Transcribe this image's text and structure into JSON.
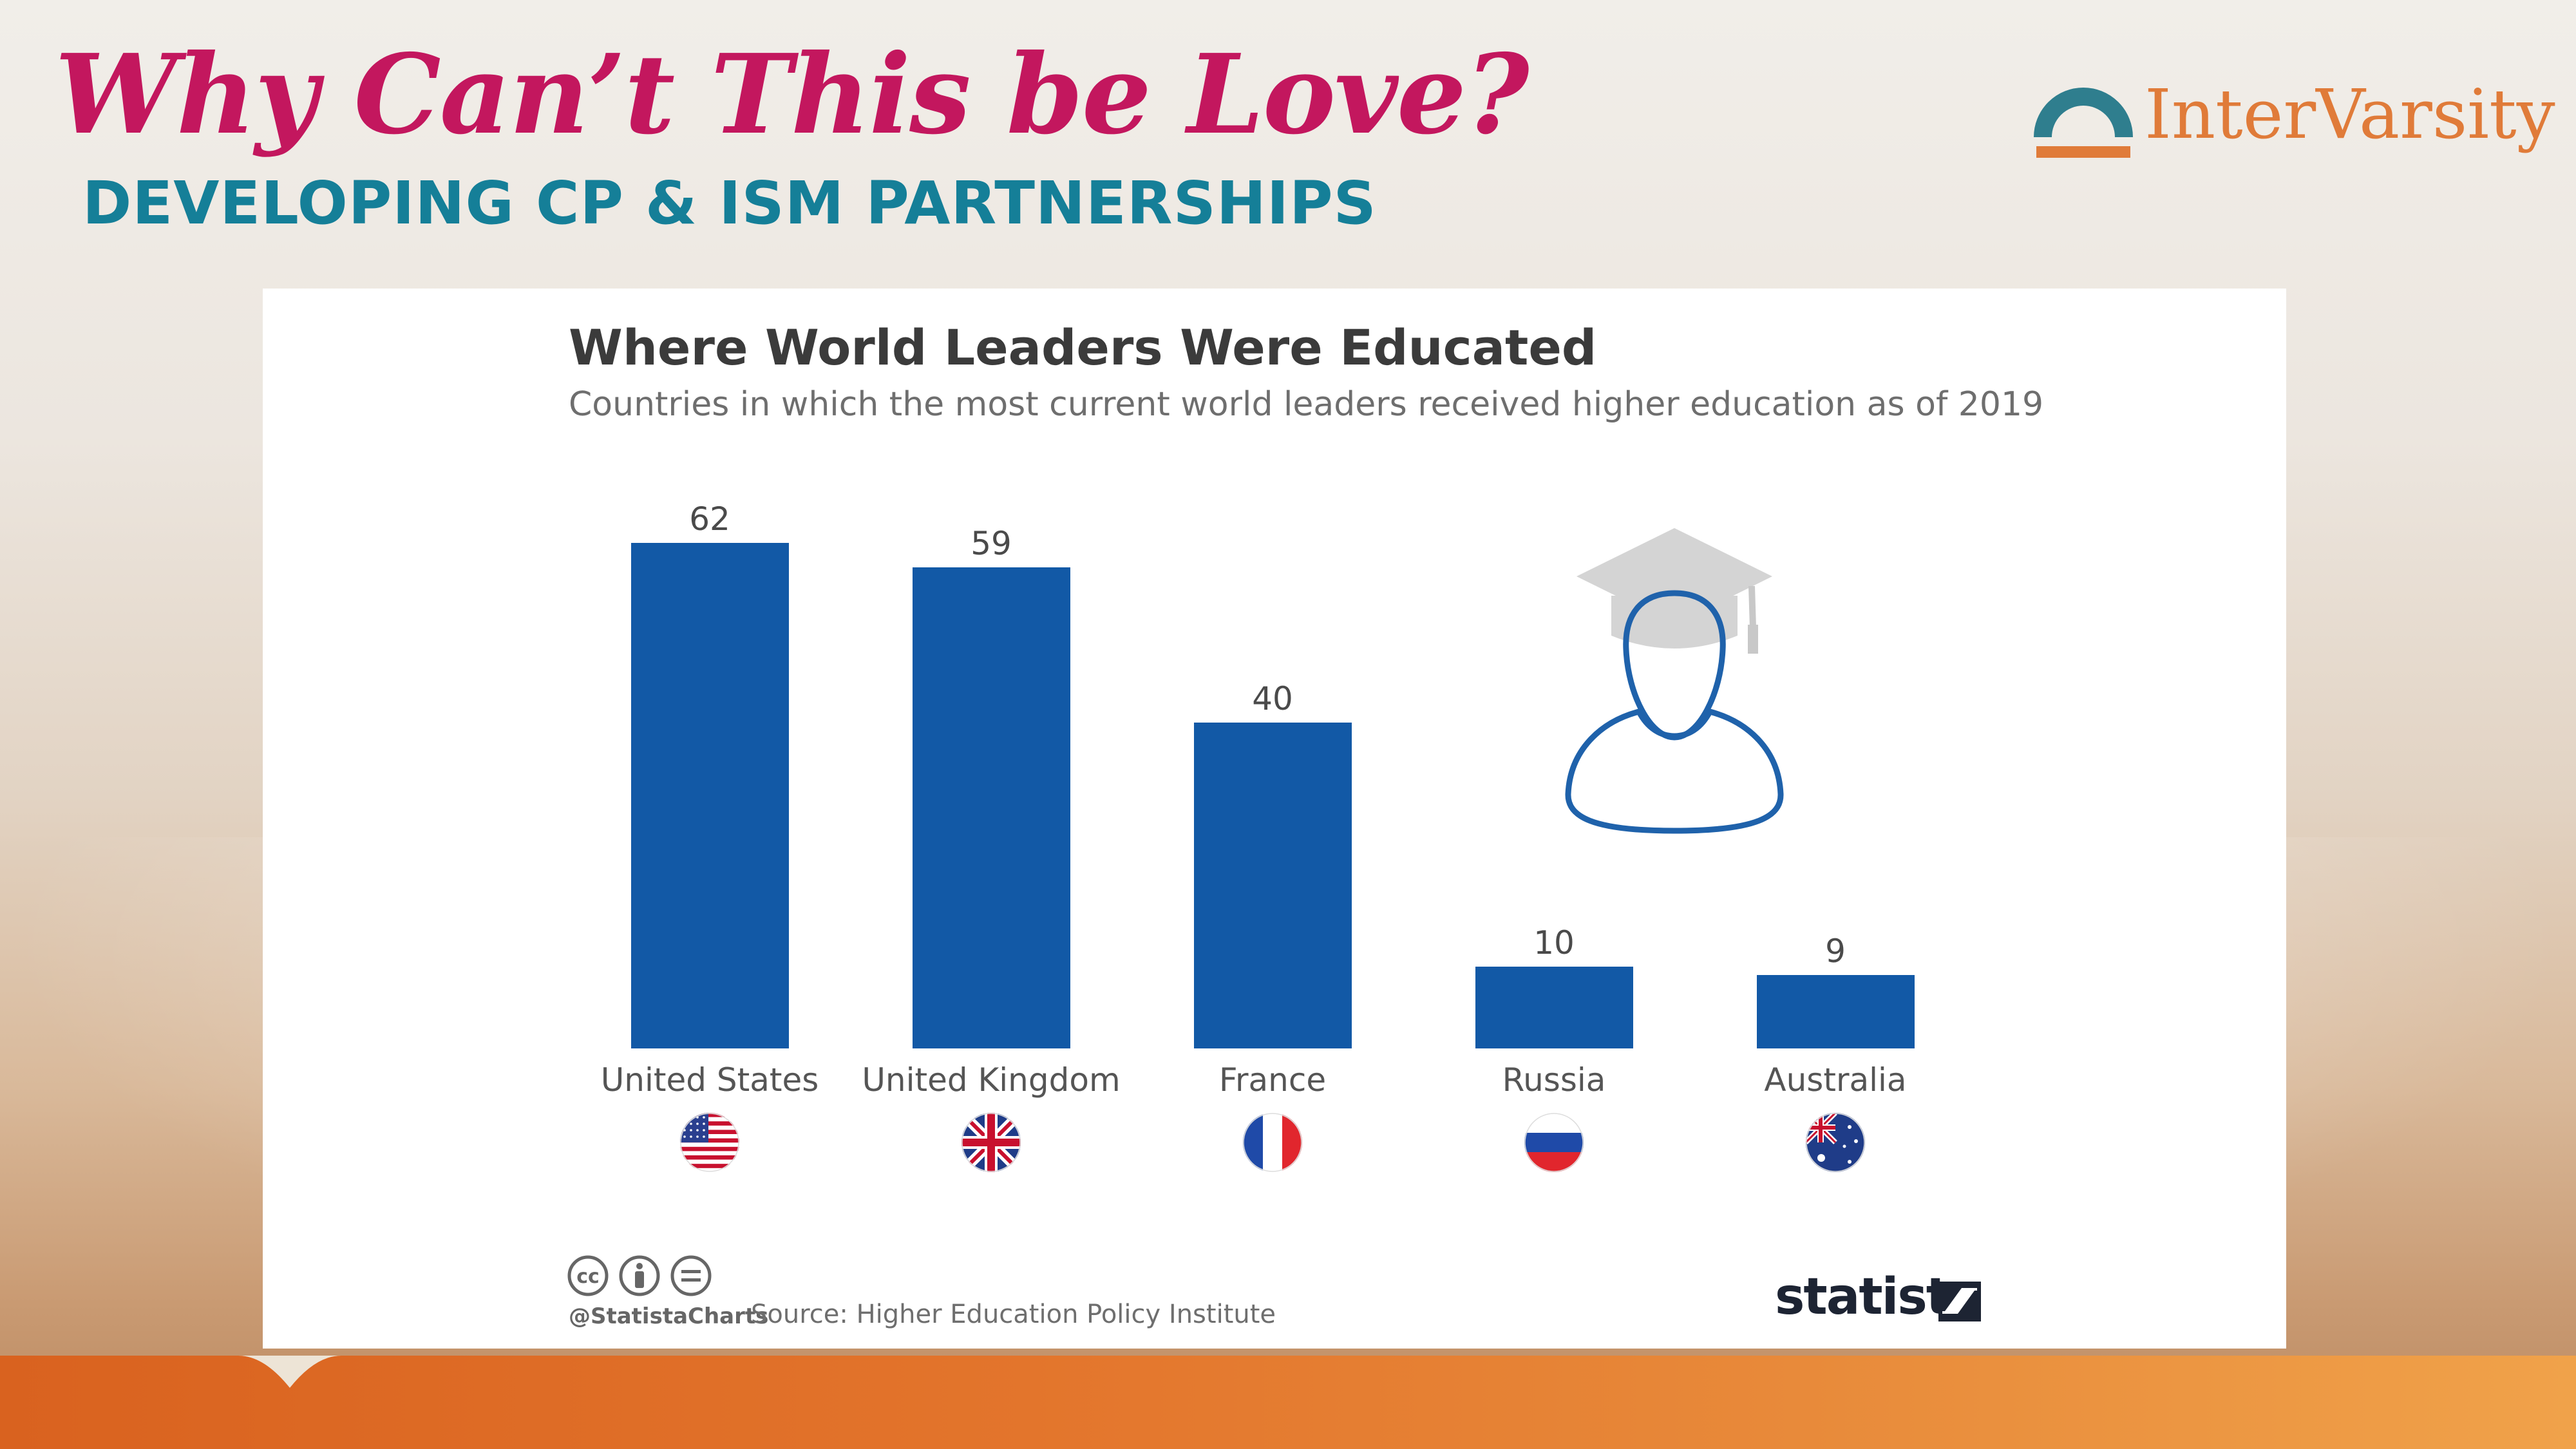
{
  "slide": {
    "title": "Why Can’t This be Love?",
    "subtitle": "DEVELOPING CP & ISM PARTNERSHIPS",
    "brand": "InterVarsity"
  },
  "chart_data": {
    "type": "bar",
    "title": "Where World Leaders Were Educated",
    "subtitle": "Countries in which the most current world leaders received higher education as of 2019",
    "categories": [
      "United States",
      "United Kingdom",
      "France",
      "Russia",
      "Australia"
    ],
    "values": [
      62,
      59,
      40,
      10,
      9
    ],
    "value_labels": [
      "62",
      "59",
      "40",
      "10",
      "9"
    ],
    "xlabel": "",
    "ylabel": "",
    "ylim": [
      0,
      62
    ],
    "grid": false,
    "legend": "none",
    "bar_color": "#1259a6",
    "flags": [
      "us-flag-icon",
      "uk-flag-icon",
      "france-flag-icon",
      "russia-flag-icon",
      "australia-flag-icon"
    ]
  },
  "footer": {
    "handle": "@StatistaCharts",
    "source": "Source: Higher Education Policy Institute",
    "logo": "statista",
    "license_icons": [
      "cc-icon",
      "by-icon",
      "nd-icon"
    ]
  },
  "colors": {
    "title_pink": "#c3175e",
    "subtitle_teal": "#157f98",
    "brand_orange": "#e07b39",
    "bar_blue": "#1259a6",
    "band_orange": "#e3752c"
  }
}
